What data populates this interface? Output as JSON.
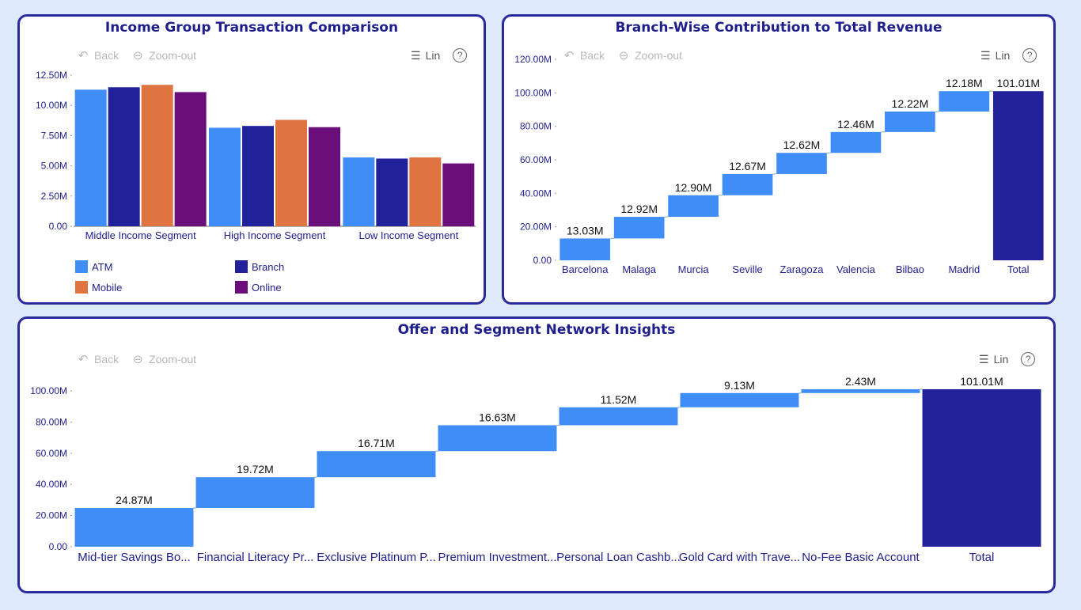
{
  "toolbar": {
    "back_label": "Back",
    "zoom_label": "Zoom-out",
    "lin_label": "Lin",
    "help_symbol": "?",
    "icons": [
      "back-arrow-icon",
      "zoom-out-icon",
      "list-icon",
      "help-icon"
    ]
  },
  "colors": {
    "atm": "#3f8ef8",
    "branch": "#21219a",
    "mobile": "#e07440",
    "online": "#6a0f7a",
    "increase": "#3f8ef8",
    "total": "#21219a",
    "axis_text": "#1e1e8c",
    "panel_border": "#2a2a9c",
    "background": "#dceafb"
  },
  "chart_data": [
    {
      "type": "bar",
      "title": "Income Group Transaction Comparison",
      "categories": [
        "Middle Income Segment",
        "High Income Segment",
        "Low Income Segment"
      ],
      "series": [
        {
          "name": "ATM",
          "values": [
            11.3,
            8.15,
            5.7
          ]
        },
        {
          "name": "Branch",
          "values": [
            11.5,
            8.3,
            5.6
          ]
        },
        {
          "name": "Mobile",
          "values": [
            11.7,
            8.8,
            5.7
          ]
        },
        {
          "name": "Online",
          "values": [
            11.1,
            8.2,
            5.2
          ]
        }
      ],
      "yticks": [
        "0.00",
        "2.50M",
        "5.00M",
        "7.50M",
        "10.00M",
        "12.50M"
      ],
      "ylim": [
        0,
        12.5
      ],
      "legend_position": "bottom"
    },
    {
      "type": "waterfall",
      "title": "Branch-Wise Contribution to Total Revenue",
      "categories": [
        "Barcelona",
        "Malaga",
        "Murcia",
        "Seville",
        "Zaragoza",
        "Valencia",
        "Bilbao",
        "Madrid",
        "Total"
      ],
      "values": [
        13.03,
        12.92,
        12.9,
        12.67,
        12.62,
        12.46,
        12.22,
        12.18,
        101.01
      ],
      "labels": [
        "13.03M",
        "12.92M",
        "12.90M",
        "12.67M",
        "12.62M",
        "12.46M",
        "12.22M",
        "12.18M",
        "101.01M"
      ],
      "yticks": [
        "0.00",
        "20.00M",
        "40.00M",
        "60.00M",
        "80.00M",
        "100.00M",
        "120.00M"
      ],
      "ylim": [
        0,
        120
      ]
    },
    {
      "type": "waterfall",
      "title": "Offer and Segment Network Insights",
      "categories": [
        "Mid-tier Savings Bo...",
        "Financial Literacy Pr...",
        "Exclusive Platinum P...",
        "Premium Investment...",
        "Personal Loan Cashb...",
        "Gold Card with Trave...",
        "No-Fee Basic Account",
        "Total"
      ],
      "values": [
        24.87,
        19.72,
        16.71,
        16.63,
        11.52,
        9.13,
        2.43,
        101.01
      ],
      "labels": [
        "24.87M",
        "19.72M",
        "16.71M",
        "16.63M",
        "11.52M",
        "9.13M",
        "2.43M",
        "101.01M"
      ],
      "yticks": [
        "0.00",
        "20.00M",
        "40.00M",
        "60.00M",
        "80.00M",
        "100.00M"
      ],
      "ylim": [
        0,
        100
      ]
    }
  ]
}
